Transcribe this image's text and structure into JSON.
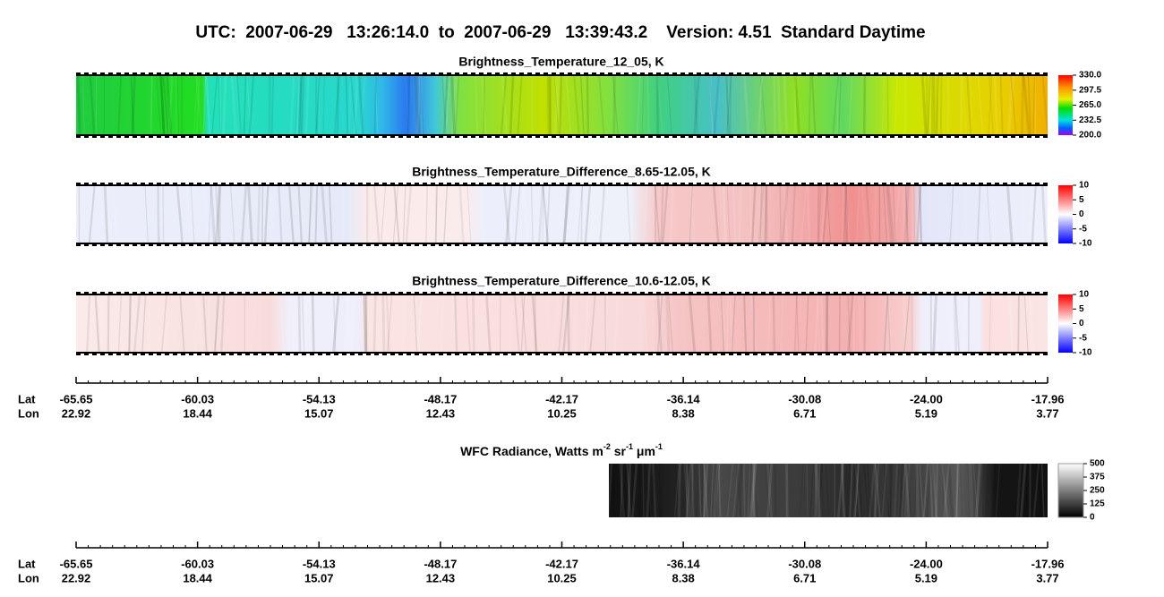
{
  "title": "UTC:  2007-06-29   13:26:14.0  to  2007-06-29   13:39:43.2    Version: 4.51  Standard Daytime",
  "chart_data": [
    {
      "type": "strip",
      "title": "Brightness_Temperature_12_05, K",
      "colorbar": "rainbow",
      "ylim": [
        200,
        330
      ],
      "yticks": [
        {
          "value": 330,
          "label": "330.0"
        },
        {
          "value": 297.5,
          "label": "297.5"
        },
        {
          "value": 265,
          "label": "265.0"
        },
        {
          "value": 232.5,
          "label": "232.5"
        },
        {
          "value": 200,
          "label": "200.0"
        }
      ]
    },
    {
      "type": "strip",
      "title": "Brightness_Temperature_Difference_8.65-12.05, K",
      "colorbar": "diverging",
      "ylim": [
        -10,
        10
      ],
      "yticks": [
        10,
        5,
        0,
        -5,
        -10
      ]
    },
    {
      "type": "strip",
      "title": "Brightness_Temperature_Difference_10.6-12.05, K",
      "colorbar": "diverging",
      "ylim": [
        -10,
        10
      ],
      "yticks": [
        10,
        5,
        0,
        -5,
        -10
      ]
    },
    {
      "type": "axis",
      "row_labels": [
        "Lat",
        "Lon"
      ],
      "categories": [
        "-65.65",
        "-60.03",
        "-54.13",
        "-48.17",
        "-42.17",
        "-36.14",
        "-30.08",
        "-24.00",
        "-17.96"
      ],
      "secondary": [
        "22.92",
        "18.44",
        "15.07",
        "12.43",
        "10.25",
        "8.38",
        "6.71",
        "5.19",
        "3.77"
      ]
    },
    {
      "type": "strip",
      "title_parts": [
        {
          "text": "WFC Radiance, Watts m"
        },
        {
          "sup": "-2"
        },
        {
          "text": " sr"
        },
        {
          "sup": "-1"
        },
        {
          "text": " μm"
        },
        {
          "sup": "-1"
        }
      ],
      "colorbar": "gray",
      "ylim": [
        0,
        500
      ],
      "yticks": [
        500,
        375,
        250,
        125,
        0
      ]
    },
    {
      "type": "axis",
      "row_labels": [
        "Lat",
        "Lon"
      ],
      "categories": [
        "-65.65",
        "-60.03",
        "-54.13",
        "-48.17",
        "-42.17",
        "-36.14",
        "-30.08",
        "-24.00",
        "-17.96"
      ],
      "secondary": [
        "22.92",
        "18.44",
        "15.07",
        "12.43",
        "10.25",
        "8.38",
        "6.71",
        "5.19",
        "3.77"
      ]
    }
  ]
}
